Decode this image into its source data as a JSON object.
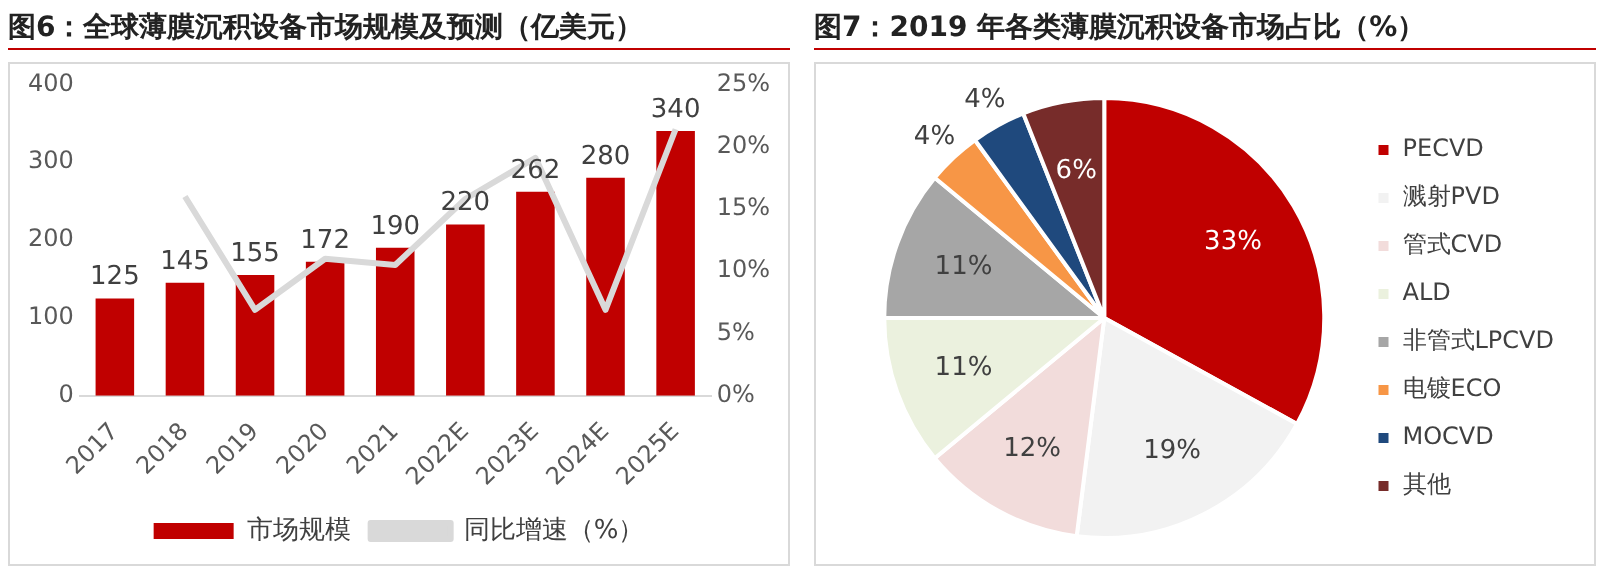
{
  "chart_data": [
    {
      "type": "bar",
      "title": "图6：全球薄膜沉积设备市场规模及预测（亿美元）",
      "categories": [
        "2017",
        "2018",
        "2019",
        "2020",
        "2021",
        "2022E",
        "2023E",
        "2024E",
        "2025E"
      ],
      "series": [
        {
          "name": "市场规模",
          "type": "bar",
          "color": "#c00000",
          "values": [
            125,
            145,
            155,
            172,
            190,
            220,
            262,
            280,
            340
          ],
          "value_labels": [
            "125",
            "145",
            "155",
            "172",
            "190",
            "220",
            "262",
            "280",
            "340"
          ]
        },
        {
          "name": "同比增速（%）",
          "type": "line",
          "axis": "y2",
          "color": "#d9d9d9",
          "values": [
            null,
            16,
            6.9,
            11,
            10.5,
            15.8,
            19.1,
            6.9,
            21.4
          ]
        }
      ],
      "ylim": [
        0,
        400
      ],
      "yticks": [
        0,
        100,
        200,
        300,
        400
      ],
      "y2lim": [
        0,
        25
      ],
      "y2ticks": [
        {
          "value": 0,
          "label": "0%"
        },
        {
          "value": 5,
          "label": "5%"
        },
        {
          "value": 10,
          "label": "10%"
        },
        {
          "value": 15,
          "label": "15%"
        },
        {
          "value": 20,
          "label": "20%"
        },
        {
          "value": 25,
          "label": "25%"
        }
      ],
      "grid": false,
      "legend": "bottom",
      "marker": "none",
      "line_style": "solid"
    },
    {
      "type": "pie",
      "title": "图7：2019 年各类薄膜沉积设备市场占比（%）",
      "categories": [
        "PECVD",
        "溅射PVD",
        "管式CVD",
        "ALD",
        "非管式LPCVD",
        "电镀ECO",
        "MOCVD",
        "其他"
      ],
      "values": [
        33,
        19,
        12,
        11,
        11,
        4,
        4,
        6
      ],
      "colors": [
        "#c00000",
        "#f2f2f2",
        "#f2dcdb",
        "#ebf1de",
        "#a6a6a6",
        "#f79646",
        "#1f497d",
        "#772c2a"
      ],
      "value_labels": [
        "33%",
        "19%",
        "12%",
        "11%",
        "11%",
        "4%",
        "4%",
        "6%"
      ],
      "legend": "right"
    }
  ]
}
